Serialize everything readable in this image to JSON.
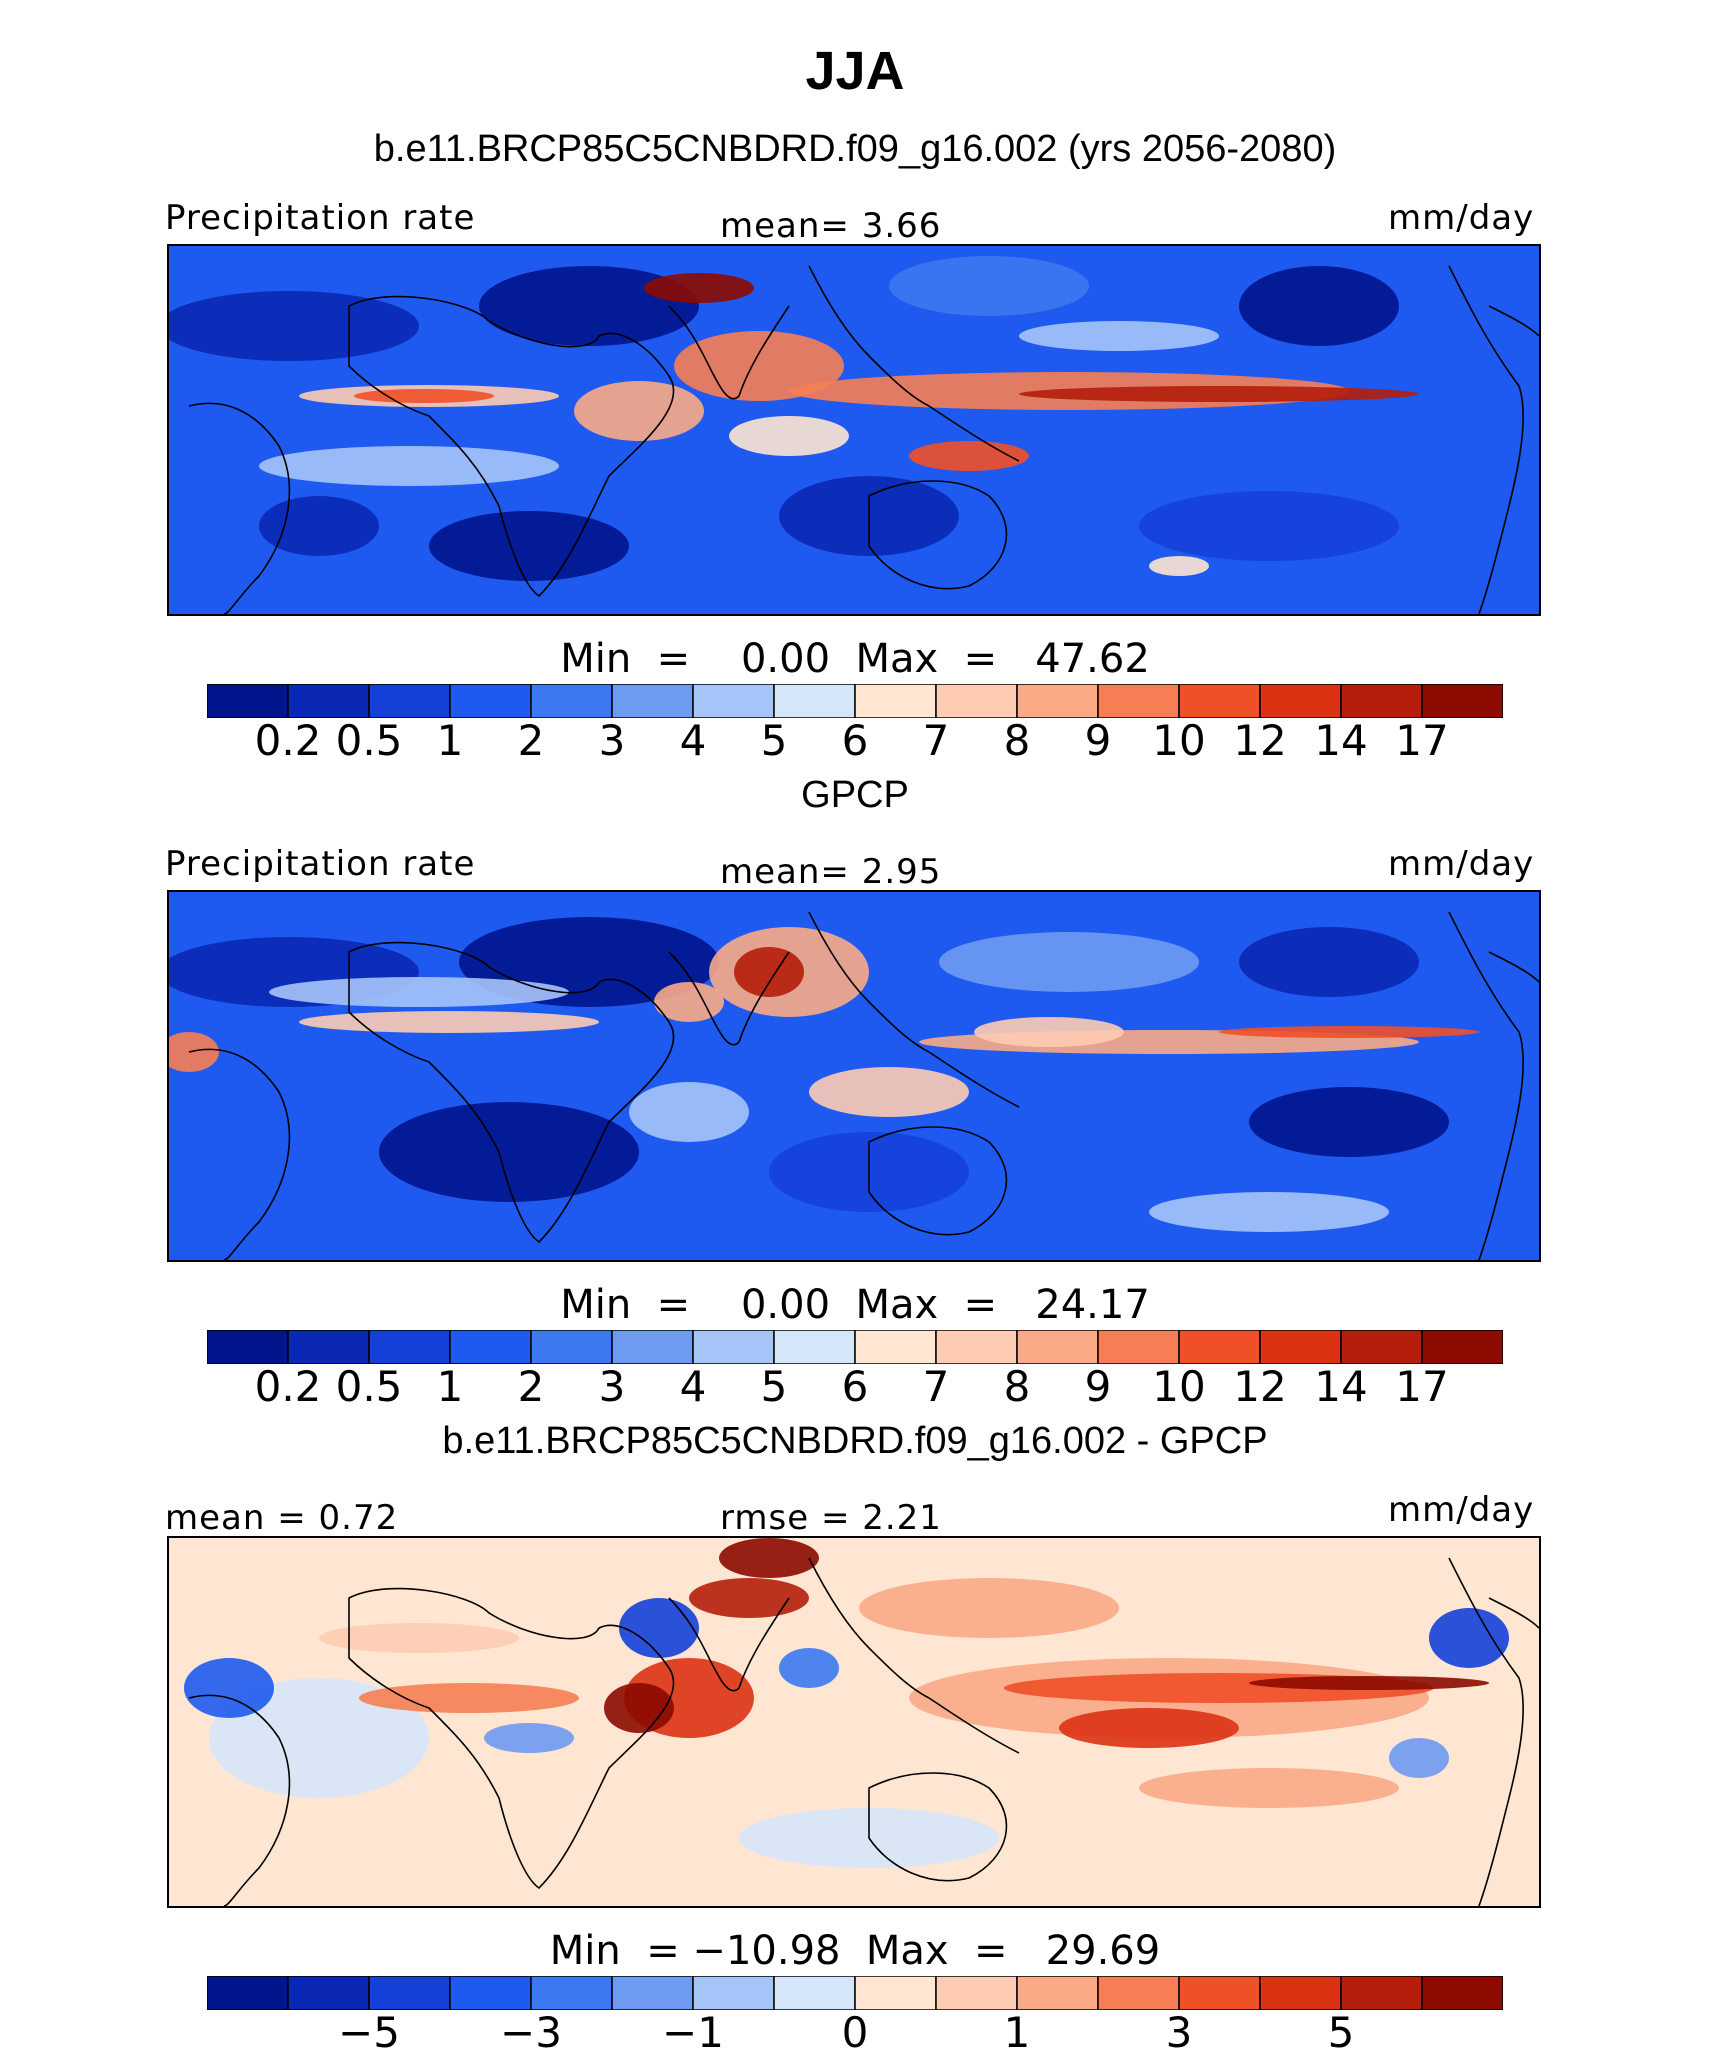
{
  "title": "JJA",
  "panels": [
    {
      "id": "model",
      "header": "b.e11.BRCP85C5CNBDRD.f09_g16.002 (yrs 2056-2080)",
      "left_label": "Precipitation rate",
      "center_label": "mean=   3.66",
      "right_label": "mm/day",
      "minmax": "Min  =    0.00  Max  =   47.62",
      "kind": "precip"
    },
    {
      "id": "obs",
      "header": "GPCP",
      "left_label": "Precipitation rate",
      "center_label": "mean=   2.95",
      "right_label": "mm/day",
      "minmax": "Min  =    0.00  Max  =   24.17",
      "kind": "precip"
    },
    {
      "id": "diff",
      "header": "b.e11.BRCP85C5CNBDRD.f09_g16.002 - GPCP",
      "left_label": "mean =   0.72",
      "center_label": "rmse =   2.21",
      "right_label": "mm/day",
      "minmax": "Min  = −10.98  Max  =   29.69",
      "kind": "diff"
    }
  ],
  "colorbars": {
    "precip": {
      "colors": [
        "#00148C",
        "#0A28B4",
        "#1440D8",
        "#1E5AF0",
        "#3C78F0",
        "#6E9AF2",
        "#A6C4F8",
        "#D6E6FA",
        "#FEE6D2",
        "#FDCCB2",
        "#FAAA86",
        "#F67E54",
        "#F05028",
        "#DC3214",
        "#B41E0A",
        "#8C0A00"
      ],
      "ticks": [
        "0.2",
        "0.5",
        "1",
        "2",
        "3",
        "4",
        "5",
        "6",
        "7",
        "8",
        "9",
        "10",
        "12",
        "14",
        "17"
      ]
    },
    "diff": {
      "colors": [
        "#00148C",
        "#0A28B4",
        "#1440D8",
        "#1E5AF0",
        "#3C78F0",
        "#6E9AF2",
        "#A6C4F8",
        "#D6E6FA",
        "#FEE6D2",
        "#FDCCB2",
        "#FAAA86",
        "#F67E54",
        "#F05028",
        "#DC3214",
        "#B41E0A",
        "#8C0A00"
      ],
      "ticks": [
        "−5",
        "",
        "−3",
        "",
        "−1",
        "",
        "0",
        "",
        "1",
        "",
        "3",
        "",
        "5"
      ]
    }
  },
  "chart_data": [
    {
      "type": "heatmap",
      "title": "b.e11.BRCP85C5CNBDRD.f09_g16.002 (yrs 2056-2080)",
      "variable": "Precipitation rate",
      "units": "mm/day",
      "mean": 3.66,
      "min": 0.0,
      "max": 47.62,
      "contour_levels": [
        0.2,
        0.5,
        1,
        2,
        3,
        4,
        5,
        6,
        7,
        8,
        9,
        10,
        12,
        14,
        17
      ]
    },
    {
      "type": "heatmap",
      "title": "GPCP",
      "variable": "Precipitation rate",
      "units": "mm/day",
      "mean": 2.95,
      "min": 0.0,
      "max": 24.17,
      "contour_levels": [
        0.2,
        0.5,
        1,
        2,
        3,
        4,
        5,
        6,
        7,
        8,
        9,
        10,
        12,
        14,
        17
      ]
    },
    {
      "type": "heatmap",
      "title": "b.e11.BRCP85C5CNBDRD.f09_g16.002 - GPCP",
      "units": "mm/day",
      "mean": 0.72,
      "rmse": 2.21,
      "min": -10.98,
      "max": 29.69,
      "contour_levels_labeled": [
        -5,
        -3,
        -1,
        0,
        1,
        3,
        5
      ]
    }
  ]
}
